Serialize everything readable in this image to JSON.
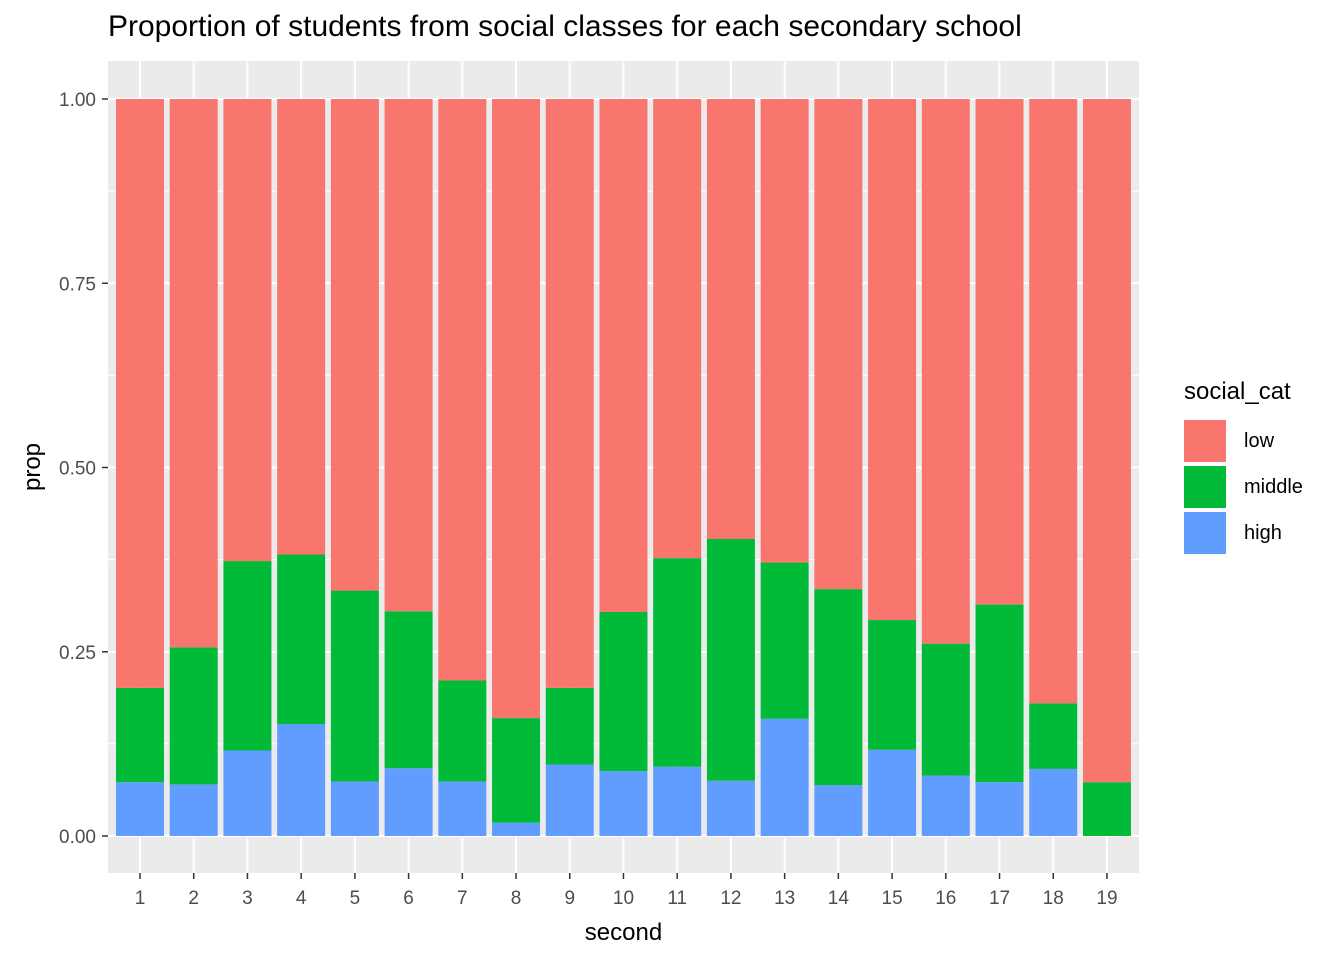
{
  "chart_data": {
    "type": "bar",
    "stacked": true,
    "title": "Proportion of students from social classes for each secondary school",
    "xlabel": "second",
    "ylabel": "prop",
    "categories": [
      "1",
      "2",
      "3",
      "4",
      "5",
      "6",
      "7",
      "8",
      "9",
      "10",
      "11",
      "12",
      "13",
      "14",
      "15",
      "16",
      "17",
      "18",
      "19"
    ],
    "ylim": [
      0,
      1
    ],
    "yticks": [
      "0.00",
      "0.25",
      "0.50",
      "0.75",
      "1.00"
    ],
    "series": [
      {
        "name": "high",
        "color": "#619CFF",
        "values": [
          0.073,
          0.07,
          0.116,
          0.152,
          0.074,
          0.092,
          0.074,
          0.018,
          0.097,
          0.088,
          0.094,
          0.075,
          0.159,
          0.069,
          0.117,
          0.082,
          0.073,
          0.091,
          0.0
        ]
      },
      {
        "name": "middle",
        "color": "#00BA38",
        "values": [
          0.128,
          0.186,
          0.257,
          0.23,
          0.259,
          0.213,
          0.137,
          0.142,
          0.104,
          0.216,
          0.283,
          0.328,
          0.212,
          0.266,
          0.176,
          0.179,
          0.241,
          0.089,
          0.073
        ]
      },
      {
        "name": "low",
        "color": "#F8766D",
        "values": [
          0.799,
          0.744,
          0.627,
          0.618,
          0.667,
          0.695,
          0.789,
          0.84,
          0.799,
          0.696,
          0.623,
          0.597,
          0.629,
          0.665,
          0.707,
          0.739,
          0.686,
          0.82,
          0.927
        ]
      }
    ],
    "legend": {
      "title": "social_cat",
      "position": "right",
      "entries": [
        {
          "name": "low",
          "color": "#F8766D"
        },
        {
          "name": "middle",
          "color": "#00BA38"
        },
        {
          "name": "high",
          "color": "#619CFF"
        }
      ]
    },
    "panel_background": "#EBEBEB",
    "grid": true
  }
}
